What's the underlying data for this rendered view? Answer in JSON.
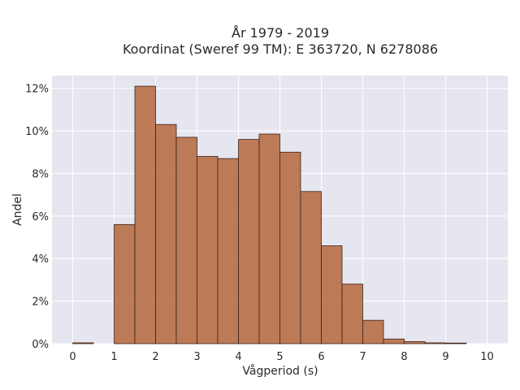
{
  "chart_data": {
    "type": "bar",
    "title_line1": "År 1979 - 2019",
    "title_line2": "Koordinat (Sweref 99 TM): E 363720, N 6278086",
    "xlabel": "Vågperiod (s)",
    "ylabel": "Andel",
    "xlim": [
      -0.5,
      10.5
    ],
    "ylim": [
      0,
      12.6
    ],
    "x_ticks": [
      0,
      1,
      2,
      3,
      4,
      5,
      6,
      7,
      8,
      9,
      10
    ],
    "x_tick_labels": [
      "0",
      "1",
      "2",
      "3",
      "4",
      "5",
      "6",
      "7",
      "8",
      "9",
      "10"
    ],
    "y_ticks": [
      0,
      2,
      4,
      6,
      8,
      10,
      12
    ],
    "y_tick_labels": [
      "0%",
      "2%",
      "4%",
      "6%",
      "8%",
      "10%",
      "12%"
    ],
    "bin_width": 0.5,
    "bins_start": [
      0,
      1,
      1.5,
      2,
      2.5,
      3,
      3.5,
      4,
      4.5,
      5,
      5.5,
      6,
      6.5,
      7,
      7.5,
      8,
      8.5,
      9
    ],
    "values": [
      0.04,
      5.6,
      12.1,
      10.3,
      9.7,
      8.8,
      8.7,
      9.6,
      9.85,
      9.0,
      7.15,
      4.6,
      2.8,
      1.1,
      0.22,
      0.1,
      0.04,
      0.03
    ],
    "grid": true,
    "bar_color": "#b8714a",
    "bar_edge_color": "#3d2418",
    "plot_background": "#e6e6f0",
    "grid_color": "#ffffff"
  }
}
